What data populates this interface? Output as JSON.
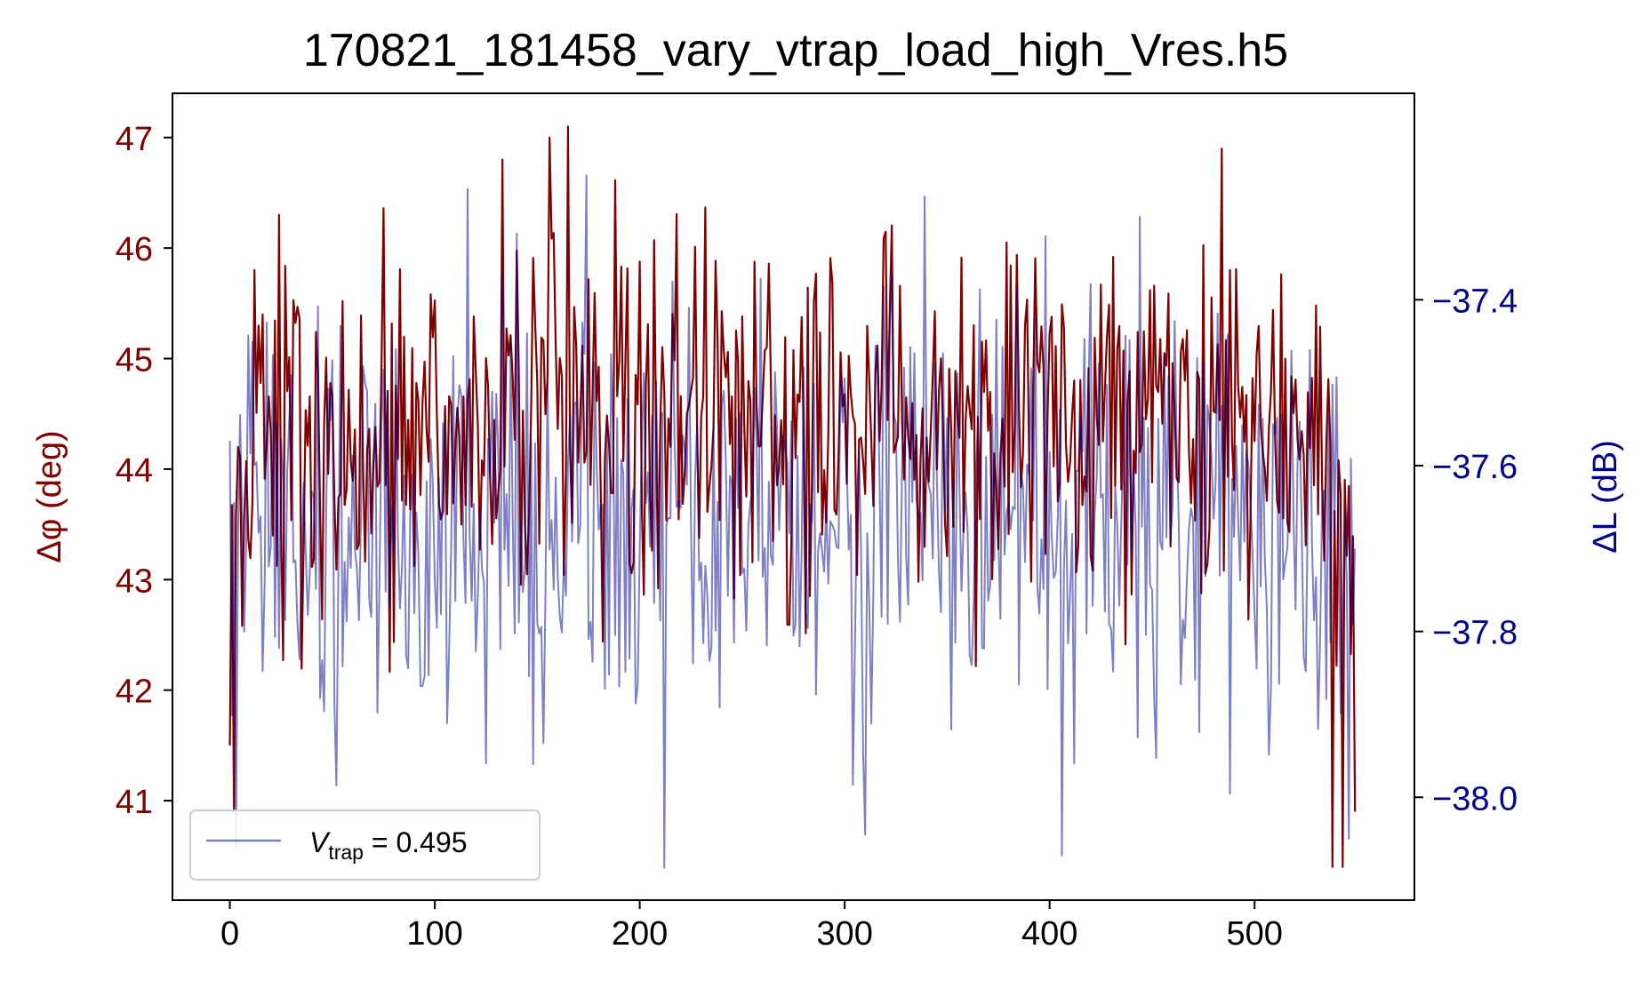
{
  "chart_data": {
    "type": "line",
    "title": "170821_181458_vary_vtrap_load_high_Vres.h5",
    "xlabel": "",
    "ylabel_left": "Δφ (deg)",
    "ylabel_right": "ΔL (dB)",
    "xlim": [
      -28,
      578
    ],
    "ylim_left": [
      40.1,
      47.4
    ],
    "ylim_right": [
      -38.124,
      -37.151
    ],
    "x_ticks": [
      0,
      100,
      200,
      300,
      400,
      500
    ],
    "x_tick_labels": [
      "0",
      "100",
      "200",
      "300",
      "400",
      "500"
    ],
    "y_left_ticks": [
      41,
      42,
      43,
      44,
      45,
      46,
      47
    ],
    "y_left_tick_labels": [
      "41",
      "42",
      "43",
      "44",
      "45",
      "46",
      "47"
    ],
    "y_right_ticks": [
      -38.0,
      -37.8,
      -37.6,
      -37.4
    ],
    "y_right_tick_labels": [
      "−38.0",
      "−37.8",
      "−37.6",
      "−37.4"
    ],
    "grid": false,
    "legend": {
      "placement": "lower-left",
      "entries": [
        {
          "symbol": "V",
          "subscript": "trap",
          "suffix": " = 0.495",
          "series": "amplitude"
        }
      ]
    },
    "colors": {
      "phase": "#800000",
      "amplitude": "#00008b",
      "left_axis": "#800000",
      "right_axis": "#00008b"
    },
    "x_range": [
      0,
      549
    ],
    "n_points": 550,
    "series": [
      {
        "key": "phase",
        "axis": "left",
        "statistics": {
          "approx_mean": 44.4,
          "approx_min": 40.4,
          "approx_max": 47.1
        },
        "sample_points": [
          [
            0,
            41.5
          ],
          [
            2,
            40.9
          ],
          [
            4,
            44.2
          ],
          [
            12,
            45.8
          ],
          [
            24,
            46.3
          ],
          [
            133,
            46.8
          ],
          [
            156,
            47.0
          ],
          [
            165,
            47.1
          ],
          [
            484,
            46.9
          ],
          [
            538,
            40.4
          ],
          [
            543,
            40.4
          ],
          [
            549,
            40.9
          ]
        ]
      },
      {
        "key": "amplitude",
        "axis": "right",
        "statistics": {
          "approx_mean": -37.66,
          "approx_min": -38.085,
          "approx_max": -37.25
        },
        "sample_points": [
          [
            0,
            -37.57
          ],
          [
            3,
            -38.06
          ],
          [
            140,
            -37.32
          ],
          [
            174,
            -37.25
          ],
          [
            212,
            -38.085
          ],
          [
            310,
            -38.045
          ],
          [
            406,
            -38.07
          ],
          [
            444,
            -37.3
          ],
          [
            536,
            -37.54
          ],
          [
            546,
            -38.05
          ],
          [
            549,
            -37.7
          ]
        ]
      }
    ]
  }
}
